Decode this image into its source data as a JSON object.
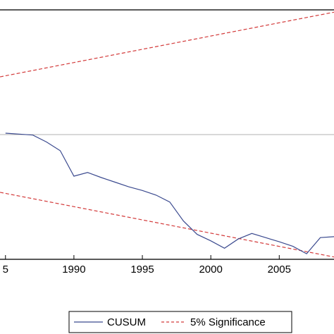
{
  "chart_data": {
    "type": "line",
    "x_ticks": [
      "5",
      "1990",
      "1995",
      "2000",
      "2005"
    ],
    "xlim": [
      1984.6,
      2009.0
    ],
    "ylim": [
      -27,
      27
    ],
    "zero_line": true,
    "colors": {
      "cusum": "#3b4a8f",
      "significance": "#d33a3a",
      "zero": "#b0b0b0"
    },
    "legend": {
      "placement": "bottom-center",
      "entries": [
        "CUSUM",
        "5% Significance"
      ]
    },
    "series": [
      {
        "name": "CUSUM",
        "style": "solid",
        "x": [
          1985,
          1986,
          1987,
          1988,
          1989,
          1990,
          1991,
          1992,
          1993,
          1994,
          1995,
          1996,
          1997,
          1998,
          1999,
          2000,
          2001,
          2002,
          2003,
          2004,
          2005,
          2006,
          2007,
          2008,
          2009
        ],
        "y": [
          0.3,
          0.1,
          -0.1,
          -1.6,
          -3.5,
          -9.0,
          -8.2,
          -9.3,
          -10.3,
          -11.3,
          -12.1,
          -13.1,
          -14.6,
          -18.7,
          -21.6,
          -23.0,
          -24.6,
          -22.6,
          -21.4,
          -22.3,
          -23.2,
          -24.2,
          -25.8,
          -22.3,
          -22.1
        ]
      },
      {
        "name": "5% Significance",
        "style": "dashed",
        "segments": [
          {
            "x": [
              1984.6,
              2009.0
            ],
            "y": [
              12.5,
              26.5
            ]
          },
          {
            "x": [
              1984.6,
              2009.0
            ],
            "y": [
              -12.5,
              -26.5
            ]
          }
        ]
      }
    ]
  }
}
